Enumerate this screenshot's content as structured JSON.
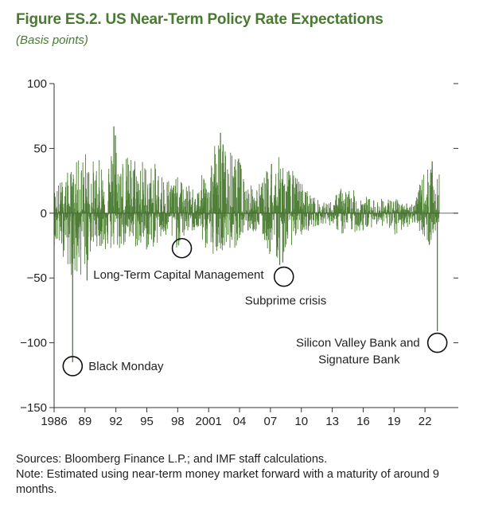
{
  "header": {
    "title": "Figure ES.2. US Near-Term Policy Rate Expectations",
    "subtitle": "(Basis points)"
  },
  "footer": {
    "sources": "Sources: Bloomberg Finance L.P.; and IMF staff calculations.",
    "note": "Note: Estimated using near-term money market forward with a maturity of around 9 months."
  },
  "colors": {
    "series": "#4f7f36",
    "axis": "#333333",
    "title": "#4a7a32"
  },
  "chart_data": {
    "type": "bar",
    "title": "Figure ES.2. US Near-Term Policy Rate Expectations",
    "ylabel": "Basis points",
    "xlabel": "",
    "xlim": [
      1986,
      2024
    ],
    "ylim": [
      -150,
      100
    ],
    "yticks": [
      100,
      50,
      0,
      -50,
      -100,
      -150
    ],
    "ytick_labels": [
      "100",
      "50",
      "0",
      "−50",
      "−100",
      "−150"
    ],
    "xticks": [
      1986,
      1989,
      1992,
      1995,
      1998,
      2001,
      2004,
      2007,
      2010,
      2013,
      2016,
      2019,
      2022
    ],
    "xtick_labels": [
      "1986",
      "89",
      "92",
      "95",
      "98",
      "2001",
      "04",
      "07",
      "10",
      "13",
      "16",
      "19",
      "22"
    ],
    "grid": false,
    "legend": "none",
    "envelope": [
      {
        "year": 1986.0,
        "max": 20,
        "min": -25
      },
      {
        "year": 1987.0,
        "max": 30,
        "min": -35
      },
      {
        "year": 1988.0,
        "max": 38,
        "min": -55
      },
      {
        "year": 1989.0,
        "max": 50,
        "min": -45
      },
      {
        "year": 1990.0,
        "max": 40,
        "min": -25
      },
      {
        "year": 1991.0,
        "max": 45,
        "min": -30
      },
      {
        "year": 1992.0,
        "max": 60,
        "min": -32
      },
      {
        "year": 1993.0,
        "max": 45,
        "min": -25
      },
      {
        "year": 1994.0,
        "max": 48,
        "min": -28
      },
      {
        "year": 1995.0,
        "max": 40,
        "min": -30
      },
      {
        "year": 1996.0,
        "max": 38,
        "min": -25
      },
      {
        "year": 1997.0,
        "max": 30,
        "min": -20
      },
      {
        "year": 1998.0,
        "max": 28,
        "min": -28
      },
      {
        "year": 1999.0,
        "max": 22,
        "min": -15
      },
      {
        "year": 2000.0,
        "max": 20,
        "min": -15
      },
      {
        "year": 2001.0,
        "max": 48,
        "min": -35
      },
      {
        "year": 2002.0,
        "max": 55,
        "min": -28
      },
      {
        "year": 2003.0,
        "max": 50,
        "min": -30
      },
      {
        "year": 2004.0,
        "max": 42,
        "min": -25
      },
      {
        "year": 2005.0,
        "max": 22,
        "min": -15
      },
      {
        "year": 2006.0,
        "max": 25,
        "min": -15
      },
      {
        "year": 2007.0,
        "max": 38,
        "min": -35
      },
      {
        "year": 2008.0,
        "max": 45,
        "min": -35
      },
      {
        "year": 2009.0,
        "max": 35,
        "min": -25
      },
      {
        "year": 2010.0,
        "max": 25,
        "min": -18
      },
      {
        "year": 2011.0,
        "max": 15,
        "min": -12
      },
      {
        "year": 2012.0,
        "max": 8,
        "min": -8
      },
      {
        "year": 2013.0,
        "max": 10,
        "min": -10
      },
      {
        "year": 2014.0,
        "max": 22,
        "min": -18
      },
      {
        "year": 2015.0,
        "max": 18,
        "min": -15
      },
      {
        "year": 2016.0,
        "max": 15,
        "min": -15
      },
      {
        "year": 2017.0,
        "max": 10,
        "min": -10
      },
      {
        "year": 2018.0,
        "max": 12,
        "min": -10
      },
      {
        "year": 2019.0,
        "max": 12,
        "min": -20
      },
      {
        "year": 2020.0,
        "max": 8,
        "min": -12
      },
      {
        "year": 2021.0,
        "max": 10,
        "min": -8
      },
      {
        "year": 2022.0,
        "max": 35,
        "min": -20
      },
      {
        "year": 2022.6,
        "max": 40,
        "min": -30
      },
      {
        "year": 2023.0,
        "max": 30,
        "min": -15
      }
    ],
    "spikes": [
      {
        "year": 1987.8,
        "value": -115
      },
      {
        "year": 1989.2,
        "value": -52
      },
      {
        "year": 1991.8,
        "value": 67
      },
      {
        "year": 1991.95,
        "value": 60
      },
      {
        "year": 2002.15,
        "value": 62
      },
      {
        "year": 2002.4,
        "value": 53
      },
      {
        "year": 2007.1,
        "value": 38
      },
      {
        "year": 2007.9,
        "value": -40
      },
      {
        "year": 2008.2,
        "value": -38
      },
      {
        "year": 2022.7,
        "value": 40
      },
      {
        "year": 2023.2,
        "value": -91
      }
    ],
    "annotations": [
      {
        "label": "Black Monday",
        "year": 1987.8,
        "value": -118
      },
      {
        "label": "Long-Term Capital Management",
        "year": 1998.4,
        "value": -27
      },
      {
        "label": "Subprime crisis",
        "year": 2008.3,
        "value": -49
      },
      {
        "label": "Silicon Valley Bank and Signature Bank",
        "label_line1": "Silicon Valley Bank and",
        "label_line2": "Signature Bank",
        "year": 2023.2,
        "value": -100
      }
    ]
  }
}
